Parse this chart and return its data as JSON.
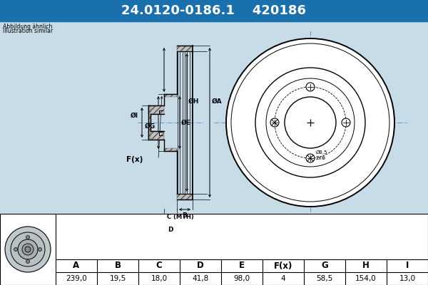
{
  "title_part1": "24.0120-0186.1",
  "title_part2": "420186",
  "title_bg": "#1a6fad",
  "title_text_color": "#ffffff",
  "subtitle1": "Abbildung ähnlich",
  "subtitle2": "Illustration similar",
  "table_headers": [
    "A",
    "B",
    "C",
    "D",
    "E",
    "F(x)",
    "G",
    "H",
    "I"
  ],
  "table_values": [
    "239,0",
    "19,5",
    "18,0",
    "41,8",
    "98,0",
    "4",
    "58,5",
    "154,0",
    "13,0"
  ],
  "bg_color": "#c8dce8",
  "table_bg": "#ffffff",
  "hatch_color": "#555555",
  "line_color": "#000000",
  "dim_line_color": "#000000",
  "centerline_color": "#5599cc",
  "watermark_color": "#aabbcc"
}
